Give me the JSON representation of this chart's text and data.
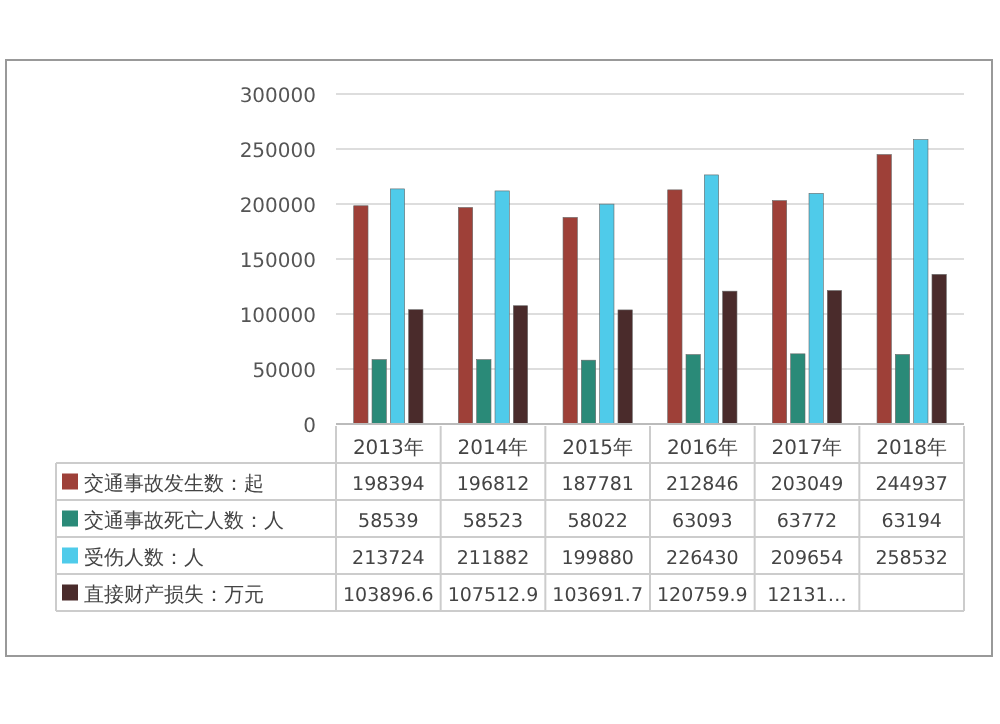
{
  "chart_data": {
    "type": "bar",
    "categories": [
      "2013年",
      "2014年",
      "2015年",
      "2016年",
      "2017年",
      "2018年"
    ],
    "series": [
      {
        "name": "交通事故发生数：起",
        "color": "#9e4038",
        "values": [
          198394,
          196812,
          187781,
          212846,
          203049,
          244937
        ],
        "value_labels": [
          "198394",
          "196812",
          "187781",
          "212846",
          "203049",
          "244937"
        ]
      },
      {
        "name": "交通事故死亡人数：人",
        "color": "#2a8a78",
        "values": [
          58539,
          58523,
          58022,
          63093,
          63772,
          63194
        ],
        "value_labels": [
          "58539",
          "58523",
          "58022",
          "63093",
          "63772",
          "63194"
        ]
      },
      {
        "name": "受伤人数：人",
        "color": "#4fcbea",
        "values": [
          213724,
          211882,
          199880,
          226430,
          209654,
          258532
        ],
        "value_labels": [
          "213724",
          "211882",
          "199880",
          "226430",
          "209654",
          "258532"
        ]
      },
      {
        "name": "直接财产损失：万元",
        "color": "#4a2b2b",
        "values": [
          103896.6,
          107512.9,
          103691.7,
          120759.9,
          121310,
          136000
        ],
        "value_labels": [
          "103896.6",
          "107512.9",
          "103691.7",
          "120759.9",
          "12131…",
          null
        ]
      }
    ],
    "ylim": [
      0,
      300000
    ],
    "yticks": [
      0,
      50000,
      100000,
      150000,
      200000,
      250000,
      300000
    ],
    "grid": "y",
    "legend": "bottom"
  }
}
